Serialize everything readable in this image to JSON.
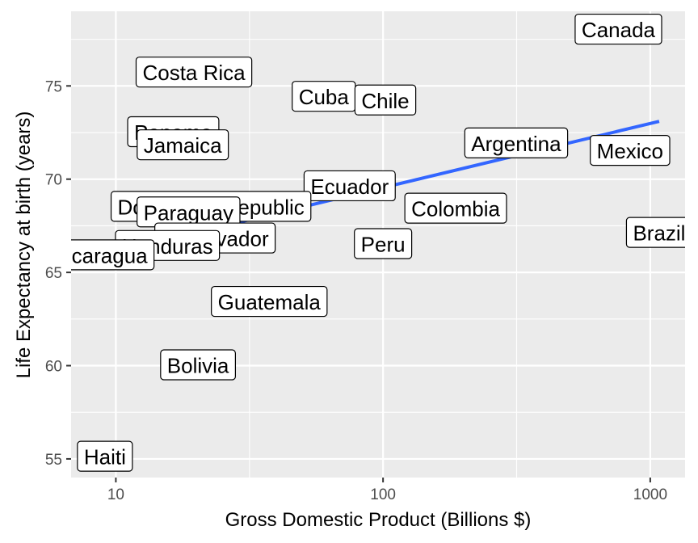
{
  "chart_data": {
    "type": "scatter",
    "title": "",
    "xlabel": "Gross Domestic Product (Billions $)",
    "ylabel": "Life Expectancy at birth (years)",
    "x_scale": "log10",
    "xlim": [
      6.8,
      1350
    ],
    "ylim": [
      54.0,
      79.0
    ],
    "x_ticks": [
      10,
      100,
      1000
    ],
    "x_tick_labels": [
      "10",
      "100",
      "1000"
    ],
    "y_ticks": [
      55,
      60,
      65,
      70,
      75
    ],
    "y_tick_labels": [
      "55",
      "60",
      "65",
      "70",
      "75"
    ],
    "grid": true,
    "legend": "none",
    "points": [
      {
        "label": "Canada",
        "x": 760,
        "y": 78.0,
        "shown_label": "Canada"
      },
      {
        "label": "Costa Rica",
        "x": 19.6,
        "y": 75.7,
        "shown_label": "Costa Rica"
      },
      {
        "label": "Cuba",
        "x": 60,
        "y": 74.4,
        "shown_label": "Cuba"
      },
      {
        "label": "Chile",
        "x": 102,
        "y": 74.2,
        "shown_label": "Chile"
      },
      {
        "label": "Panama",
        "x": 16.4,
        "y": 72.5,
        "shown_label": "Panama"
      },
      {
        "label": "Jamaica",
        "x": 17.8,
        "y": 71.8,
        "shown_label": "Jamaica"
      },
      {
        "label": "Argentina",
        "x": 315,
        "y": 71.9,
        "shown_label": "Argentina"
      },
      {
        "label": "Mexico",
        "x": 840,
        "y": 71.5,
        "shown_label": "Mexico"
      },
      {
        "label": "Ecuador",
        "x": 75,
        "y": 69.6,
        "shown_label": "Ecuador"
      },
      {
        "label": "Dominican Republic",
        "x": 22.7,
        "y": 68.5,
        "shown_label": "Dominican Republic"
      },
      {
        "label": "Paraguay",
        "x": 18.7,
        "y": 68.2,
        "shown_label": "Paraguay"
      },
      {
        "label": "Colombia",
        "x": 187,
        "y": 68.4,
        "shown_label": "Colombia"
      },
      {
        "label": "Brazil",
        "x": 1080,
        "y": 67.1,
        "shown_label": "Brazil"
      },
      {
        "label": "El Salvador",
        "x": 23.5,
        "y": 66.8,
        "shown_label": "El Salvador"
      },
      {
        "label": "Honduras",
        "x": 15.6,
        "y": 66.4,
        "shown_label": "Honduras"
      },
      {
        "label": "Peru",
        "x": 100,
        "y": 66.5,
        "shown_label": "Peru"
      },
      {
        "label": "Nicaragua",
        "x": 8.7,
        "y": 65.9,
        "shown_label": "Nicaragua"
      },
      {
        "label": "Guatemala",
        "x": 37.5,
        "y": 63.4,
        "shown_label": "Guatemala"
      },
      {
        "label": "Bolivia",
        "x": 20.3,
        "y": 60.0,
        "shown_label": "Bolivia"
      },
      {
        "label": "Haiti",
        "x": 9.1,
        "y": 55.1,
        "shown_label": "Haiti"
      }
    ],
    "trend_line": {
      "x": [
        8.7,
        1080
      ],
      "y": [
        65.9,
        73.1
      ],
      "color": "#3366FF"
    },
    "colors": {
      "panel": "#EBEBEB",
      "grid": "#FFFFFF",
      "point": "#000000",
      "label_fill": "#FFFFFF",
      "label_stroke": "#000000",
      "tick_text": "#4D4D4D"
    }
  }
}
